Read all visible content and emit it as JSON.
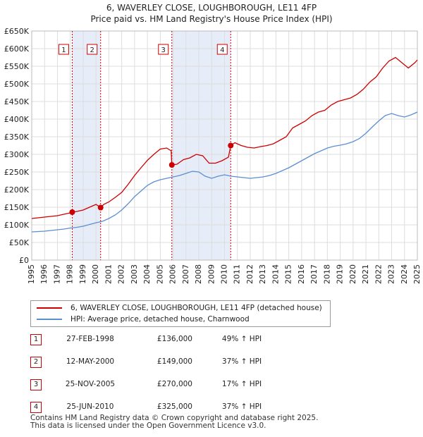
{
  "chart_data": {
    "type": "line",
    "title": "6, WAVERLEY CLOSE, LOUGHBOROUGH, LE11 4FP",
    "subtitle": "Price paid vs. HM Land Registry's House Price Index (HPI)",
    "xlim": [
      1995,
      2025
    ],
    "ylim": [
      0,
      650000
    ],
    "x_ticks": [
      "1995",
      "1996",
      "1997",
      "1998",
      "1999",
      "2000",
      "2001",
      "2002",
      "2003",
      "2004",
      "2005",
      "2006",
      "2007",
      "2008",
      "2009",
      "2010",
      "2011",
      "2012",
      "2013",
      "2014",
      "2015",
      "2016",
      "2017",
      "2018",
      "2019",
      "2020",
      "2021",
      "2022",
      "2023",
      "2024",
      "2025"
    ],
    "y_ticks": [
      {
        "value": 0,
        "label": "£0"
      },
      {
        "value": 50000,
        "label": "£50K"
      },
      {
        "value": 100000,
        "label": "£100K"
      },
      {
        "value": 150000,
        "label": "£150K"
      },
      {
        "value": 200000,
        "label": "£200K"
      },
      {
        "value": 250000,
        "label": "£250K"
      },
      {
        "value": 300000,
        "label": "£300K"
      },
      {
        "value": 350000,
        "label": "£350K"
      },
      {
        "value": 400000,
        "label": "£400K"
      },
      {
        "value": 450000,
        "label": "£450K"
      },
      {
        "value": 500000,
        "label": "£500K"
      },
      {
        "value": 550000,
        "label": "£550K"
      },
      {
        "value": 600000,
        "label": "£600K"
      },
      {
        "value": 650000,
        "label": "£650K"
      }
    ],
    "grid": true,
    "shaded_periods": [
      [
        1998.15,
        2000.36
      ],
      [
        2005.9,
        2010.48
      ]
    ],
    "series": [
      {
        "name": "6, WAVERLEY CLOSE, LOUGHBOROUGH, LE11 4FP (detached house)",
        "color": "#cc0000",
        "x": [
          1995.0,
          1995.5,
          1996.0,
          1996.5,
          1997.0,
          1997.5,
          1998.0,
          1998.15,
          1998.5,
          1999.0,
          1999.5,
          2000.0,
          2000.36,
          2000.6,
          2001.0,
          2001.5,
          2002.0,
          2002.5,
          2003.0,
          2003.5,
          2004.0,
          2004.5,
          2005.0,
          2005.5,
          2005.85,
          2005.9,
          2006.3,
          2006.8,
          2007.3,
          2007.8,
          2008.3,
          2008.8,
          2009.3,
          2009.8,
          2010.3,
          2010.48,
          2010.8,
          2011.3,
          2011.8,
          2012.3,
          2012.8,
          2013.3,
          2013.8,
          2014.3,
          2014.8,
          2015.3,
          2015.8,
          2016.3,
          2016.8,
          2017.3,
          2017.8,
          2018.3,
          2018.8,
          2019.3,
          2019.8,
          2020.3,
          2020.8,
          2021.3,
          2021.8,
          2022.3,
          2022.8,
          2023.3,
          2023.8,
          2024.3,
          2024.8,
          2025.0
        ],
        "values": [
          118000,
          120000,
          122000,
          124000,
          126000,
          130000,
          134000,
          136000,
          138000,
          142000,
          150000,
          158000,
          149000,
          158000,
          165000,
          178000,
          192000,
          215000,
          240000,
          262000,
          283000,
          300000,
          315000,
          318000,
          310000,
          270000,
          272000,
          285000,
          290000,
          300000,
          296000,
          275000,
          275000,
          282000,
          292000,
          325000,
          333000,
          325000,
          320000,
          318000,
          322000,
          325000,
          330000,
          340000,
          350000,
          375000,
          385000,
          395000,
          410000,
          420000,
          425000,
          440000,
          450000,
          455000,
          460000,
          470000,
          485000,
          505000,
          520000,
          545000,
          565000,
          575000,
          560000,
          545000,
          560000,
          568000
        ]
      },
      {
        "name": "HPI: Average price, detached house, Charnwood",
        "color": "#5b8fd0",
        "x": [
          1995.0,
          1995.5,
          1996.0,
          1996.5,
          1997.0,
          1997.5,
          1998.0,
          1998.5,
          1999.0,
          1999.5,
          2000.0,
          2000.5,
          2001.0,
          2001.5,
          2002.0,
          2002.5,
          2003.0,
          2003.5,
          2004.0,
          2004.5,
          2005.0,
          2005.5,
          2006.0,
          2006.5,
          2007.0,
          2007.5,
          2008.0,
          2008.5,
          2009.0,
          2009.5,
          2010.0,
          2010.5,
          2011.0,
          2011.5,
          2012.0,
          2012.5,
          2013.0,
          2013.5,
          2014.0,
          2014.5,
          2015.0,
          2015.5,
          2016.0,
          2016.5,
          2017.0,
          2017.5,
          2018.0,
          2018.5,
          2019.0,
          2019.5,
          2020.0,
          2020.5,
          2021.0,
          2021.5,
          2022.0,
          2022.5,
          2023.0,
          2023.5,
          2024.0,
          2024.5,
          2025.0
        ],
        "values": [
          80000,
          81000,
          82000,
          84000,
          86000,
          88000,
          91000,
          93000,
          96000,
          101000,
          106000,
          110000,
          118000,
          128000,
          142000,
          160000,
          180000,
          196000,
          212000,
          222000,
          228000,
          232000,
          236000,
          240000,
          246000,
          252000,
          250000,
          238000,
          232000,
          238000,
          242000,
          238000,
          236000,
          234000,
          232000,
          234000,
          236000,
          240000,
          246000,
          254000,
          262000,
          272000,
          282000,
          292000,
          302000,
          310000,
          318000,
          323000,
          326000,
          330000,
          336000,
          345000,
          360000,
          378000,
          395000,
          410000,
          416000,
          410000,
          406000,
          412000,
          420000
        ]
      }
    ],
    "sales": [
      {
        "n": "1",
        "x": 1998.15,
        "value": 136000
      },
      {
        "n": "2",
        "x": 2000.36,
        "value": 149000
      },
      {
        "n": "3",
        "x": 2005.9,
        "value": 270000
      },
      {
        "n": "4",
        "x": 2010.48,
        "value": 325000
      }
    ]
  },
  "legend": {
    "items": [
      {
        "label": "6, WAVERLEY CLOSE, LOUGHBOROUGH, LE11 4FP (detached house)",
        "color": "#cc0000"
      },
      {
        "label": "HPI: Average price, detached house, Charnwood",
        "color": "#5b8fd0"
      }
    ]
  },
  "sales_table": [
    {
      "n": "1",
      "date": "27-FEB-1998",
      "price": "£136,000",
      "hpi": "49% ↑ HPI"
    },
    {
      "n": "2",
      "date": "12-MAY-2000",
      "price": "£149,000",
      "hpi": "37% ↑ HPI"
    },
    {
      "n": "3",
      "date": "25-NOV-2005",
      "price": "£270,000",
      "hpi": "17% ↑ HPI"
    },
    {
      "n": "4",
      "date": "25-JUN-2010",
      "price": "£325,000",
      "hpi": "37% ↑ HPI"
    }
  ],
  "footer": {
    "line1": "Contains HM Land Registry data © Crown copyright and database right 2025.",
    "line2": "This data is licensed under the Open Government Licence v3.0."
  }
}
